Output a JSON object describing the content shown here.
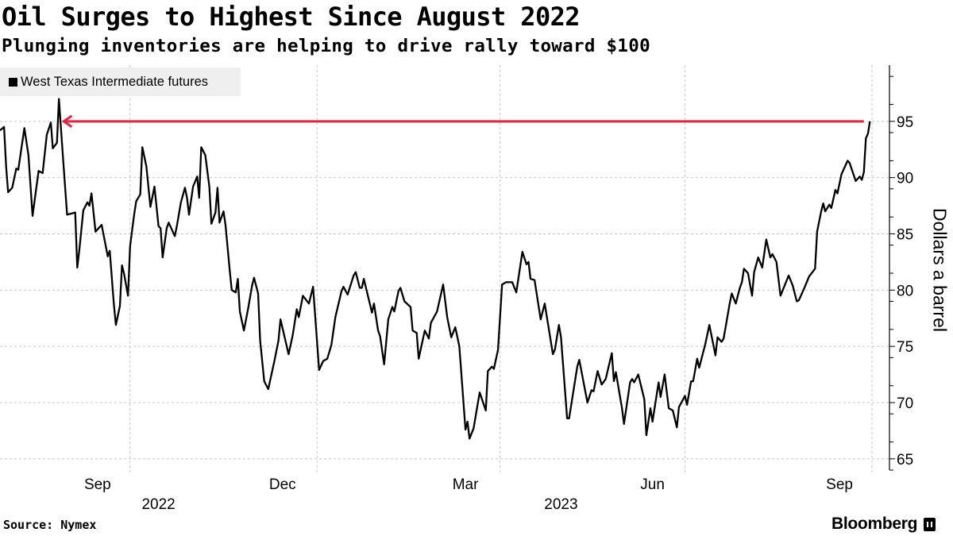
{
  "header": {
    "title": "Oil Surges to Highest Since August 2022",
    "subtitle": "Plunging inventories are helping to drive rally toward $100"
  },
  "footer": {
    "source": "Source: Nymex",
    "brand": "Bloomberg"
  },
  "colors": {
    "line": "#000000",
    "annotation": "#e8213f",
    "grid": "#c8c8c8",
    "legend_bg": "#efefef"
  },
  "chart_data": {
    "type": "line",
    "title": "Oil Surges to Highest Since August 2022",
    "subtitle": "Plunging inventories are helping to drive rally toward $100",
    "ylabel": "Dollars a barrel",
    "xlabel": "",
    "ylim": [
      64,
      100
    ],
    "y_axis_side": "right",
    "yticks": [
      65,
      70,
      75,
      80,
      85,
      90,
      95
    ],
    "y_minor_step": 2.5,
    "xlim": [
      "2022-07-29",
      "2023-10-01"
    ],
    "x_gridlines": [
      "2022-10-01",
      "2023-01-01",
      "2023-04-01",
      "2023-07-01",
      "2023-10-01"
    ],
    "x_tick_labels": [
      {
        "label": "Sep",
        "date": "2022-09-15"
      },
      {
        "label": "Dec",
        "date": "2022-12-15"
      },
      {
        "label": "Mar",
        "date": "2023-03-15"
      },
      {
        "label": "Jun",
        "date": "2023-06-15"
      },
      {
        "label": "Sep",
        "date": "2023-09-15"
      }
    ],
    "year_labels": [
      {
        "label": "2022",
        "date": "2022-10-15"
      },
      {
        "label": "2023",
        "date": "2023-05-01"
      }
    ],
    "grid": true,
    "legend": {
      "placement": "top-left",
      "entries": [
        "West Texas Intermediate futures"
      ]
    },
    "annotation": {
      "type": "arrow",
      "value": 95,
      "from": "2023-09-27",
      "to": "2022-08-29"
    },
    "series": [
      {
        "name": "West Texas Intermediate futures",
        "points": [
          [
            "2022-07-29",
            94.2
          ],
          [
            "2022-07-31",
            94.5
          ],
          [
            "2022-08-01",
            91.0
          ],
          [
            "2022-08-02",
            88.7
          ],
          [
            "2022-08-04",
            89.1
          ],
          [
            "2022-08-06",
            90.8
          ],
          [
            "2022-08-07",
            90.7
          ],
          [
            "2022-08-10",
            94.4
          ],
          [
            "2022-08-12",
            92.0
          ],
          [
            "2022-08-14",
            86.6
          ],
          [
            "2022-08-17",
            90.6
          ],
          [
            "2022-08-19",
            90.4
          ],
          [
            "2022-08-21",
            93.8
          ],
          [
            "2022-08-23",
            94.9
          ],
          [
            "2022-08-24",
            92.6
          ],
          [
            "2022-08-26",
            93.1
          ],
          [
            "2022-08-27",
            97.0
          ],
          [
            "2022-08-29",
            91.8
          ],
          [
            "2022-08-31",
            86.7
          ],
          [
            "2022-09-04",
            86.9
          ],
          [
            "2022-09-05",
            82.0
          ],
          [
            "2022-09-06",
            83.5
          ],
          [
            "2022-09-08",
            87.1
          ],
          [
            "2022-09-10",
            87.8
          ],
          [
            "2022-09-11",
            87.5
          ],
          [
            "2022-09-12",
            88.6
          ],
          [
            "2022-09-14",
            85.2
          ],
          [
            "2022-09-17",
            85.8
          ],
          [
            "2022-09-20",
            83.0
          ],
          [
            "2022-09-21",
            83.5
          ],
          [
            "2022-09-23",
            78.8
          ],
          [
            "2022-09-24",
            76.9
          ],
          [
            "2022-09-26",
            78.6
          ],
          [
            "2022-09-27",
            82.2
          ],
          [
            "2022-09-28",
            81.5
          ],
          [
            "2022-09-30",
            79.5
          ],
          [
            "2022-10-01",
            83.9
          ],
          [
            "2022-10-03",
            86.7
          ],
          [
            "2022-10-04",
            87.9
          ],
          [
            "2022-10-06",
            88.5
          ],
          [
            "2022-10-07",
            92.7
          ],
          [
            "2022-10-09",
            91.0
          ],
          [
            "2022-10-11",
            87.4
          ],
          [
            "2022-10-13",
            89.2
          ],
          [
            "2022-10-15",
            85.7
          ],
          [
            "2022-10-16",
            85.5
          ],
          [
            "2022-10-17",
            82.9
          ],
          [
            "2022-10-19",
            85.5
          ],
          [
            "2022-10-20",
            86.0
          ],
          [
            "2022-10-23",
            84.8
          ],
          [
            "2022-10-24",
            85.7
          ],
          [
            "2022-10-26",
            87.8
          ],
          [
            "2022-10-28",
            89.1
          ],
          [
            "2022-10-29",
            88.2
          ],
          [
            "2022-10-30",
            86.7
          ],
          [
            "2022-11-01",
            89.2
          ],
          [
            "2022-11-03",
            90.1
          ],
          [
            "2022-11-04",
            88.2
          ],
          [
            "2022-11-05",
            92.7
          ],
          [
            "2022-11-07",
            92.0
          ],
          [
            "2022-11-09",
            89.2
          ],
          [
            "2022-11-10",
            85.9
          ],
          [
            "2022-11-12",
            86.9
          ],
          [
            "2022-11-13",
            89.1
          ],
          [
            "2022-11-14",
            86.0
          ],
          [
            "2022-11-16",
            87.0
          ],
          [
            "2022-11-17",
            85.7
          ],
          [
            "2022-11-19",
            81.8
          ],
          [
            "2022-11-20",
            80.0
          ],
          [
            "2022-11-22",
            79.8
          ],
          [
            "2022-11-23",
            81.0
          ],
          [
            "2022-11-24",
            78.1
          ],
          [
            "2022-11-26",
            76.4
          ],
          [
            "2022-11-28",
            78.3
          ],
          [
            "2022-11-30",
            80.4
          ],
          [
            "2022-12-01",
            81.1
          ],
          [
            "2022-12-03",
            79.7
          ],
          [
            "2022-12-04",
            75.5
          ],
          [
            "2022-12-06",
            71.9
          ],
          [
            "2022-12-08",
            71.2
          ],
          [
            "2022-12-11",
            73.7
          ],
          [
            "2022-12-13",
            75.5
          ],
          [
            "2022-12-14",
            77.4
          ],
          [
            "2022-12-18",
            74.3
          ],
          [
            "2022-12-20",
            76.0
          ],
          [
            "2022-12-22",
            78.3
          ],
          [
            "2022-12-23",
            77.6
          ],
          [
            "2022-12-25",
            79.5
          ],
          [
            "2022-12-28",
            78.8
          ],
          [
            "2022-12-30",
            80.3
          ],
          [
            "2023-01-02",
            72.9
          ],
          [
            "2023-01-04",
            73.7
          ],
          [
            "2023-01-06",
            73.9
          ],
          [
            "2023-01-08",
            75.1
          ],
          [
            "2023-01-10",
            77.6
          ],
          [
            "2023-01-13",
            79.9
          ],
          [
            "2023-01-14",
            80.3
          ],
          [
            "2023-01-16",
            79.6
          ],
          [
            "2023-01-19",
            81.3
          ],
          [
            "2023-01-20",
            81.6
          ],
          [
            "2023-01-22",
            80.2
          ],
          [
            "2023-01-23",
            80.2
          ],
          [
            "2023-01-24",
            81.0
          ],
          [
            "2023-01-28",
            78.0
          ],
          [
            "2023-01-29",
            78.8
          ],
          [
            "2023-01-31",
            76.4
          ],
          [
            "2023-02-01",
            75.9
          ],
          [
            "2023-02-03",
            73.4
          ],
          [
            "2023-02-05",
            77.4
          ],
          [
            "2023-02-07",
            78.5
          ],
          [
            "2023-02-08",
            78.1
          ],
          [
            "2023-02-10",
            79.9
          ],
          [
            "2023-02-11",
            80.2
          ],
          [
            "2023-02-13",
            79.0
          ],
          [
            "2023-02-16",
            78.5
          ],
          [
            "2023-02-17",
            76.4
          ],
          [
            "2023-02-19",
            76.2
          ],
          [
            "2023-02-20",
            73.9
          ],
          [
            "2023-02-22",
            75.6
          ],
          [
            "2023-02-23",
            76.4
          ],
          [
            "2023-02-25",
            75.7
          ],
          [
            "2023-02-26",
            77.1
          ],
          [
            "2023-03-01",
            78.1
          ],
          [
            "2023-03-04",
            80.5
          ],
          [
            "2023-03-06",
            77.6
          ],
          [
            "2023-03-08",
            75.8
          ],
          [
            "2023-03-10",
            76.7
          ],
          [
            "2023-03-12",
            75.0
          ],
          [
            "2023-03-15",
            67.6
          ],
          [
            "2023-03-16",
            68.3
          ],
          [
            "2023-03-17",
            66.8
          ],
          [
            "2023-03-19",
            67.7
          ],
          [
            "2023-03-22",
            70.9
          ],
          [
            "2023-03-25",
            69.3
          ],
          [
            "2023-03-26",
            72.8
          ],
          [
            "2023-03-28",
            73.2
          ],
          [
            "2023-03-29",
            73.0
          ],
          [
            "2023-03-31",
            74.7
          ],
          [
            "2023-04-02",
            80.5
          ],
          [
            "2023-04-04",
            80.7
          ],
          [
            "2023-04-07",
            80.7
          ],
          [
            "2023-04-09",
            79.8
          ],
          [
            "2023-04-12",
            83.4
          ],
          [
            "2023-04-14",
            82.3
          ],
          [
            "2023-04-15",
            82.5
          ],
          [
            "2023-04-16",
            81.0
          ],
          [
            "2023-04-18",
            80.9
          ],
          [
            "2023-04-21",
            77.4
          ],
          [
            "2023-04-23",
            78.8
          ],
          [
            "2023-04-27",
            74.3
          ],
          [
            "2023-04-28",
            74.7
          ],
          [
            "2023-04-30",
            76.9
          ],
          [
            "2023-05-01",
            75.8
          ],
          [
            "2023-05-04",
            68.6
          ],
          [
            "2023-05-05",
            68.6
          ],
          [
            "2023-05-09",
            73.2
          ],
          [
            "2023-05-10",
            73.8
          ],
          [
            "2023-05-14",
            70.0
          ],
          [
            "2023-05-16",
            71.1
          ],
          [
            "2023-05-17",
            71.0
          ],
          [
            "2023-05-19",
            72.8
          ],
          [
            "2023-05-21",
            71.6
          ],
          [
            "2023-05-23",
            72.1
          ],
          [
            "2023-05-26",
            74.4
          ],
          [
            "2023-05-27",
            71.9
          ],
          [
            "2023-05-28",
            72.7
          ],
          [
            "2023-05-31",
            69.5
          ],
          [
            "2023-06-01",
            68.1
          ],
          [
            "2023-06-04",
            71.8
          ],
          [
            "2023-06-05",
            72.1
          ],
          [
            "2023-06-06",
            71.8
          ],
          [
            "2023-06-08",
            72.5
          ],
          [
            "2023-06-11",
            70.3
          ],
          [
            "2023-06-12",
            67.1
          ],
          [
            "2023-06-14",
            69.5
          ],
          [
            "2023-06-15",
            68.3
          ],
          [
            "2023-06-18",
            71.8
          ],
          [
            "2023-06-19",
            70.5
          ],
          [
            "2023-06-21",
            72.5
          ],
          [
            "2023-06-23",
            69.5
          ],
          [
            "2023-06-25",
            69.3
          ],
          [
            "2023-06-27",
            67.8
          ],
          [
            "2023-06-28",
            69.6
          ],
          [
            "2023-07-01",
            70.6
          ],
          [
            "2023-07-02",
            69.8
          ],
          [
            "2023-07-04",
            71.9
          ],
          [
            "2023-07-05",
            71.9
          ],
          [
            "2023-07-07",
            73.9
          ],
          [
            "2023-07-08",
            73.1
          ],
          [
            "2023-07-11",
            75.2
          ],
          [
            "2023-07-13",
            76.9
          ],
          [
            "2023-07-16",
            74.2
          ],
          [
            "2023-07-17",
            75.8
          ],
          [
            "2023-07-19",
            75.4
          ],
          [
            "2023-07-20",
            75.7
          ],
          [
            "2023-07-23",
            78.8
          ],
          [
            "2023-07-24",
            79.7
          ],
          [
            "2023-07-26",
            78.8
          ],
          [
            "2023-07-28",
            80.2
          ],
          [
            "2023-07-29",
            80.7
          ],
          [
            "2023-07-30",
            81.9
          ],
          [
            "2023-08-01",
            81.5
          ],
          [
            "2023-08-03",
            79.5
          ],
          [
            "2023-08-04",
            81.6
          ],
          [
            "2023-08-06",
            82.9
          ],
          [
            "2023-08-08",
            82.0
          ],
          [
            "2023-08-10",
            84.5
          ],
          [
            "2023-08-12",
            82.9
          ],
          [
            "2023-08-13",
            83.2
          ],
          [
            "2023-08-15",
            82.5
          ],
          [
            "2023-08-17",
            79.5
          ],
          [
            "2023-08-21",
            81.3
          ],
          [
            "2023-08-23",
            80.4
          ],
          [
            "2023-08-25",
            79.0
          ],
          [
            "2023-08-26",
            79.1
          ],
          [
            "2023-08-28",
            79.9
          ],
          [
            "2023-08-29",
            80.3
          ],
          [
            "2023-08-31",
            81.2
          ],
          [
            "2023-09-03",
            81.9
          ],
          [
            "2023-09-04",
            85.2
          ],
          [
            "2023-09-06",
            87.0
          ],
          [
            "2023-09-07",
            87.7
          ],
          [
            "2023-09-08",
            87.0
          ],
          [
            "2023-09-10",
            87.6
          ],
          [
            "2023-09-11",
            87.3
          ],
          [
            "2023-09-13",
            88.9
          ],
          [
            "2023-09-14",
            88.6
          ],
          [
            "2023-09-16",
            90.3
          ],
          [
            "2023-09-19",
            91.5
          ],
          [
            "2023-09-20",
            91.3
          ],
          [
            "2023-09-23",
            89.7
          ],
          [
            "2023-09-25",
            90.1
          ],
          [
            "2023-09-26",
            89.8
          ],
          [
            "2023-09-27",
            90.5
          ],
          [
            "2023-09-28",
            93.5
          ],
          [
            "2023-09-29",
            93.9
          ],
          [
            "2023-09-30",
            95.0
          ]
        ]
      }
    ]
  }
}
